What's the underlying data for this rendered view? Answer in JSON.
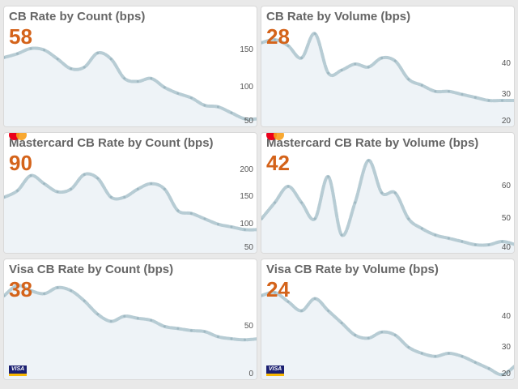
{
  "colors": {
    "accent": "#d4631a",
    "line": "#b7ccd4",
    "fill": "#eef3f7"
  },
  "panels": [
    {
      "id": "cb-count",
      "title": "CB Rate by Count (bps)",
      "value": "58",
      "logo": "",
      "ticks": [
        "150",
        "100",
        "50"
      ]
    },
    {
      "id": "cb-volume",
      "title": "CB Rate by Volume (bps)",
      "value": "28",
      "logo": "",
      "ticks": [
        "40",
        "30",
        "20"
      ]
    },
    {
      "id": "mc-count",
      "title": "Mastercard CB Rate by Count (bps)",
      "value": "90",
      "logo": "mastercard-icon",
      "ticks": [
        "200",
        "150",
        "100",
        "50"
      ]
    },
    {
      "id": "mc-volume",
      "title": "Mastercard CB Rate by Volume (bps)",
      "value": "42",
      "logo": "mastercard-icon",
      "ticks": [
        "60",
        "50",
        "40"
      ]
    },
    {
      "id": "visa-count",
      "title": "Visa CB Rate by Count (bps)",
      "value": "38",
      "logo": "visa-icon",
      "ticks": [
        "50",
        "0"
      ]
    },
    {
      "id": "visa-volume",
      "title": "Visa CB Rate by Volume (bps)",
      "value": "24",
      "logo": "visa-icon",
      "ticks": [
        "40",
        "30",
        "20"
      ]
    }
  ],
  "chart_data": [
    {
      "type": "line",
      "panel": "cb-count",
      "ylim": [
        50,
        180
      ],
      "x": [
        0,
        1,
        2,
        3,
        4,
        5,
        6,
        7,
        8,
        9,
        10,
        11,
        12,
        13,
        14,
        15,
        16,
        17,
        18,
        19
      ],
      "values": [
        140,
        145,
        152,
        150,
        138,
        125,
        127,
        146,
        138,
        112,
        108,
        112,
        100,
        92,
        86,
        76,
        74,
        66,
        58,
        58
      ]
    },
    {
      "type": "line",
      "panel": "cb-volume",
      "ylim": [
        20,
        52
      ],
      "x": [
        0,
        1,
        2,
        3,
        4,
        5,
        6,
        7,
        8,
        9,
        10,
        11,
        12,
        13,
        14,
        15,
        16,
        17,
        18,
        19
      ],
      "values": [
        47,
        48,
        46,
        42,
        50,
        37,
        38,
        40,
        39,
        42,
        41,
        35,
        33,
        31,
        31,
        30,
        29,
        28,
        28,
        28
      ]
    },
    {
      "type": "line",
      "panel": "mc-count",
      "ylim": [
        50,
        230
      ],
      "x": [
        0,
        1,
        2,
        3,
        4,
        5,
        6,
        7,
        8,
        9,
        10,
        11,
        12,
        13,
        14,
        15,
        16,
        17,
        18,
        19
      ],
      "values": [
        150,
        162,
        190,
        175,
        160,
        165,
        192,
        185,
        150,
        150,
        165,
        175,
        165,
        125,
        120,
        110,
        100,
        95,
        90,
        90
      ]
    },
    {
      "type": "line",
      "panel": "mc-volume",
      "ylim": [
        40,
        70
      ],
      "x": [
        0,
        1,
        2,
        3,
        4,
        5,
        6,
        7,
        8,
        9,
        10,
        11,
        12,
        13,
        14,
        15,
        16,
        17,
        18,
        19
      ],
      "values": [
        50,
        55,
        60,
        55,
        50,
        63,
        45,
        55,
        68,
        58,
        58,
        50,
        47,
        45,
        44,
        43,
        42,
        42,
        43,
        42
      ]
    },
    {
      "type": "line",
      "panel": "visa-count",
      "ylim": [
        0,
        95
      ],
      "x": [
        0,
        1,
        2,
        3,
        4,
        5,
        6,
        7,
        8,
        9,
        10,
        11,
        12,
        13,
        14,
        15,
        16,
        17,
        18,
        19
      ],
      "values": [
        80,
        90,
        85,
        82,
        88,
        85,
        75,
        62,
        55,
        60,
        58,
        56,
        50,
        48,
        46,
        45,
        40,
        38,
        37,
        38
      ]
    },
    {
      "type": "line",
      "panel": "visa-volume",
      "ylim": [
        20,
        52
      ],
      "x": [
        0,
        1,
        2,
        3,
        4,
        5,
        6,
        7,
        8,
        9,
        10,
        11,
        12,
        13,
        14,
        15,
        16,
        17,
        18,
        19
      ],
      "values": [
        47,
        48,
        45,
        42,
        46,
        42,
        38,
        34,
        33,
        35,
        34,
        30,
        28,
        27,
        28,
        27,
        25,
        23,
        21,
        24
      ]
    }
  ]
}
